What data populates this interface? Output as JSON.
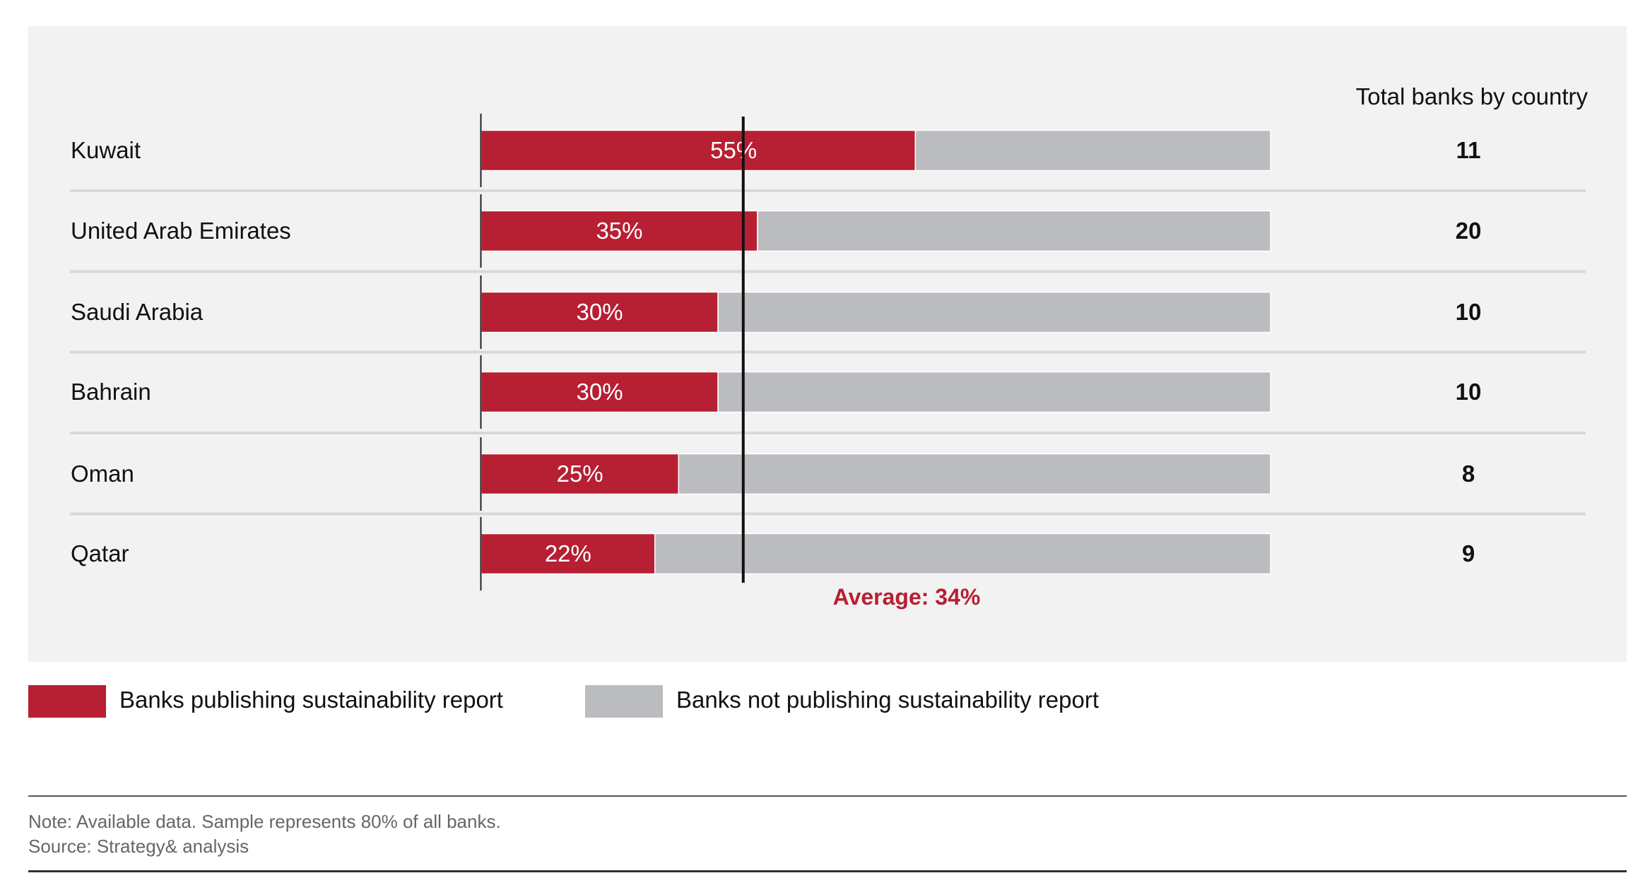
{
  "chart_data": {
    "type": "bar",
    "orientation": "horizontal",
    "stacked": true,
    "categories": [
      "Kuwait",
      "United Arab Emirates",
      "Saudi Arabia",
      "Bahrain",
      "Oman",
      "Qatar"
    ],
    "series": [
      {
        "name": "Banks publishing sustainability report",
        "values": [
          55,
          35,
          30,
          30,
          25,
          22
        ],
        "color": "#b71f33"
      },
      {
        "name": "Banks not publishing sustainability report",
        "values": [
          45,
          65,
          70,
          70,
          75,
          78
        ],
        "color": "#bbbcbf"
      }
    ],
    "data_labels": [
      "55%",
      "35%",
      "30%",
      "30%",
      "25%",
      "22%"
    ],
    "xlim": [
      0,
      100
    ],
    "average": {
      "value": 34,
      "label": "Average: 34%",
      "color": "#b71f33"
    },
    "counts_header": "Total banks by country",
    "counts": [
      "11",
      "20",
      "10",
      "10",
      "8",
      "9"
    ],
    "legend_placement": "bottom-left",
    "grid": false
  },
  "footer": {
    "note": "Note: Available data. Sample represents 80% of all banks.",
    "source": "Source: Strategy& analysis"
  }
}
